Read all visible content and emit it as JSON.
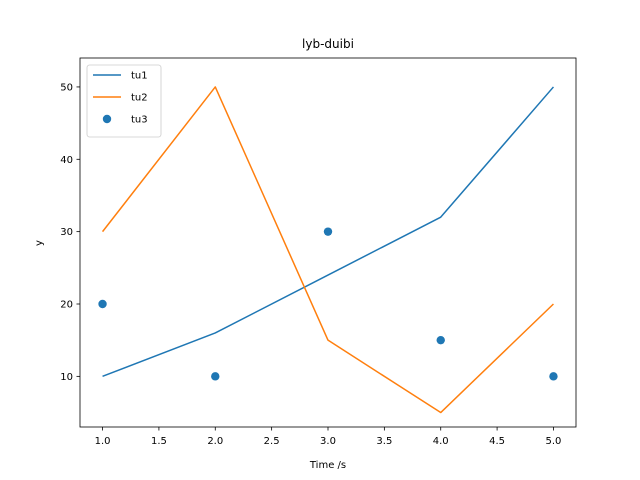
{
  "chart_data": {
    "type": "line",
    "title": "lyb-duibi",
    "xlabel": "Time /s",
    "ylabel": "y",
    "xlim": [
      0.8,
      5.2
    ],
    "ylim": [
      3,
      54
    ],
    "xticks": [
      1.0,
      1.5,
      2.0,
      2.5,
      3.0,
      3.5,
      4.0,
      4.5,
      5.0
    ],
    "xtick_labels": [
      "1.0",
      "1.5",
      "2.0",
      "2.5",
      "3.0",
      "3.5",
      "4.0",
      "4.5",
      "5.0"
    ],
    "yticks": [
      10,
      20,
      30,
      40,
      50
    ],
    "ytick_labels": [
      "10",
      "20",
      "30",
      "40",
      "50"
    ],
    "grid": false,
    "legend_position": "top-left",
    "series": [
      {
        "name": "tu1",
        "kind": "line",
        "color": "#1f77b4",
        "x": [
          1,
          2,
          3,
          4,
          5
        ],
        "y": [
          10,
          16,
          24,
          32,
          50
        ]
      },
      {
        "name": "tu2",
        "kind": "line",
        "color": "#ff7f0e",
        "x": [
          1,
          2,
          3,
          4,
          5
        ],
        "y": [
          30,
          50,
          15,
          5,
          20
        ]
      },
      {
        "name": "tu3",
        "kind": "scatter",
        "color": "#1f77b4",
        "x": [
          1,
          2,
          3,
          4,
          5
        ],
        "y": [
          20,
          10,
          30,
          15,
          10
        ]
      }
    ]
  }
}
